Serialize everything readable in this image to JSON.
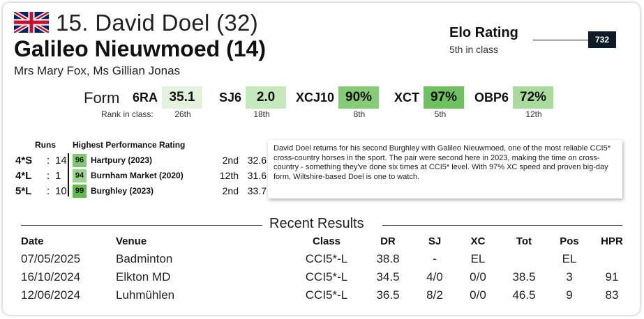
{
  "header": {
    "flag_icon": "uk-flag-icon",
    "rider": "15. David Doel (32)",
    "horse": "Galileo Nieuwmoed (14)",
    "owners": "Mrs Mary Fox, Ms Gillian Jonas"
  },
  "elo": {
    "title": "Elo Rating",
    "subtitle": "5th in class",
    "value": "732"
  },
  "form": {
    "label": "Form",
    "rank_label": "Rank in class:",
    "items": [
      {
        "key": "6RA",
        "value": "35.1",
        "rank": "26th",
        "color": "#e2f2dc"
      },
      {
        "key": "SJ6",
        "value": "2.0",
        "rank": "18th",
        "color": "#c6e8bd"
      },
      {
        "key": "XCJ10",
        "value": "90%",
        "rank": "8th",
        "color": "#86cc77"
      },
      {
        "key": "XCT",
        "value": "97%",
        "rank": "5th",
        "color": "#6fc05f"
      },
      {
        "key": "OBP6",
        "value": "72%",
        "rank": "12th",
        "color": "#a9dc9c"
      }
    ]
  },
  "runs": {
    "header_runs": "Runs",
    "header_hpr": "Highest Performance Rating",
    "rows": [
      {
        "level": "4*S",
        "colon": ":",
        "count": "14",
        "hpr": "96",
        "event": "Hartpury (2023)",
        "pos": "2nd",
        "score": "32.6",
        "color": "#7ec96c"
      },
      {
        "level": "4*L",
        "colon": ":",
        "count": "1",
        "hpr": "94",
        "event": "Burnham Market (2020)",
        "pos": "12th",
        "score": "31.6",
        "color": "#9ad58b"
      },
      {
        "level": "5*L",
        "colon": ":",
        "count": "10",
        "hpr": "99",
        "event": "Burghley (2023)",
        "pos": "2nd",
        "score": "33.7",
        "color": "#5fbb4d"
      }
    ]
  },
  "description": "David Doel returns for his second Burghley with Galileo Nieuwmoed, one of the most reliable CCI5* cross-country horses in the sport. The pair were second here in 2023, making the time on cross-country - something they've done six times at CCI5* level. With 97% XC speed and proven big-day form, Wiltshire-based Doel is one to watch.",
  "recent": {
    "title": "Recent Results",
    "columns": [
      "Date",
      "Venue",
      "Class",
      "DR",
      "SJ",
      "XC",
      "Tot",
      "Pos",
      "HPR"
    ],
    "rows": [
      [
        "07/05/2025",
        "Badminton",
        "CCI5*-L",
        "38.8",
        "-",
        "EL",
        "",
        "EL",
        ""
      ],
      [
        "16/10/2024",
        "Elkton  MD",
        "CCI5*-L",
        "34.5",
        "4/0",
        "0/0",
        "38.5",
        "3",
        "91"
      ],
      [
        "12/06/2024",
        "Luhmühlen",
        "CCI5*-L",
        "36.5",
        "8/2",
        "0/0",
        "46.5",
        "9",
        "83"
      ]
    ]
  }
}
